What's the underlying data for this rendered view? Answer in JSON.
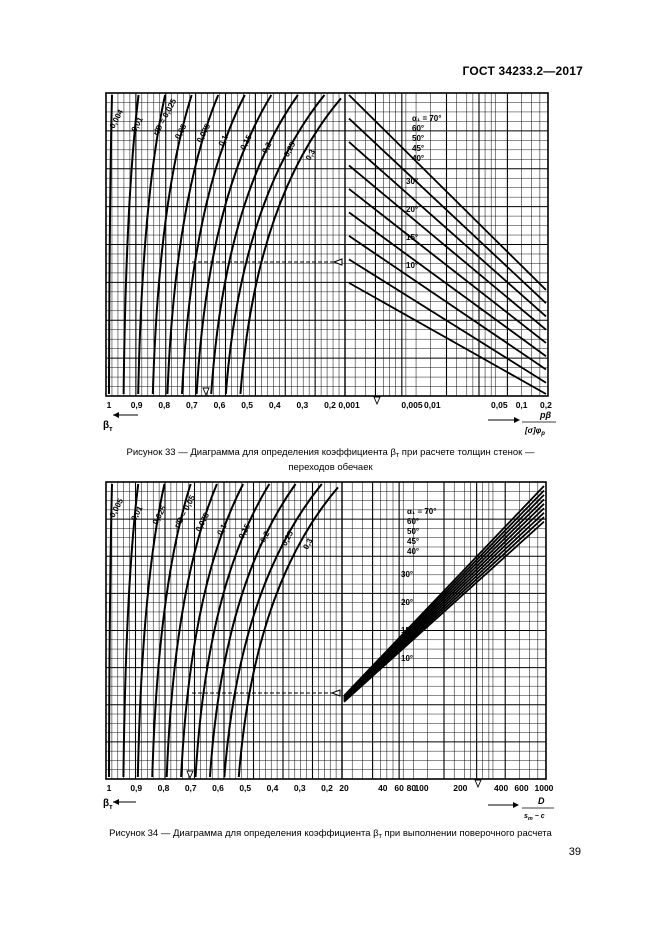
{
  "header": {
    "standard": "ГОСТ 34233.2—2017"
  },
  "figure33": {
    "x_left_ticks": [
      "1",
      "0,9",
      "0,8",
      "0,7",
      "0,6",
      "0,5",
      "0,4",
      "0,3",
      "0,2"
    ],
    "x_right_ticks": [
      "0,001",
      "0,005",
      "0,01",
      "0,05",
      "0,1",
      "0,2"
    ],
    "x_left_label": "β",
    "x_left_label_sub": "т",
    "x_right_label_top": "pβ",
    "x_right_label_bottom": "[σ]φ",
    "x_right_label_bottom_sub": "р",
    "curve_labels": [
      "0,004",
      "0,01",
      "r/D = 0,025",
      "0,05",
      "0,075",
      "0,1",
      "0,15",
      "0,2",
      "0,25",
      "0,3"
    ],
    "angle_labels": [
      "α₁ = 70°",
      "60°",
      "50°",
      "45°",
      "40°",
      "30°",
      "20°",
      "15°",
      "10°"
    ],
    "caption_line1_prefix": "Рисунок 33 — Диаграмма для определения коэффициента β",
    "caption_line1_sub": "т",
    "caption_line1_suffix": " при расчете толщин стенок —",
    "caption_line2": "переходов обечаек"
  },
  "figure34": {
    "x_left_ticks": [
      "1",
      "0,9",
      "0,8",
      "0,7",
      "0,6",
      "0,5",
      "0,4",
      "0,3",
      "0,2"
    ],
    "x_right_ticks": [
      "20",
      "40",
      "60",
      "80",
      "100",
      "200",
      "400",
      "600",
      "1000"
    ],
    "x_left_label": "β",
    "x_left_label_sub": "т",
    "x_right_label_top": "D",
    "x_right_label_bottom": "s",
    "x_right_label_bottom_sub": "т",
    "x_right_label_bottom_tail": " − c",
    "curve_labels": [
      "0,005",
      "0,01",
      "0,025",
      "r/D = 0,05",
      "0,075",
      "0,1",
      "0,15",
      "0,2",
      "0,25",
      "0,3"
    ],
    "angle_labels": [
      "α₁ = 70°",
      "60°",
      "50°",
      "45°",
      "40°",
      "30°",
      "20°",
      "15°",
      "10°"
    ],
    "caption_prefix": "Рисунок 34 — Диаграмма для определения коэффициента β",
    "caption_sub": "т",
    "caption_suffix": " при выполнении поверочного расчета"
  },
  "page_number": "39"
}
